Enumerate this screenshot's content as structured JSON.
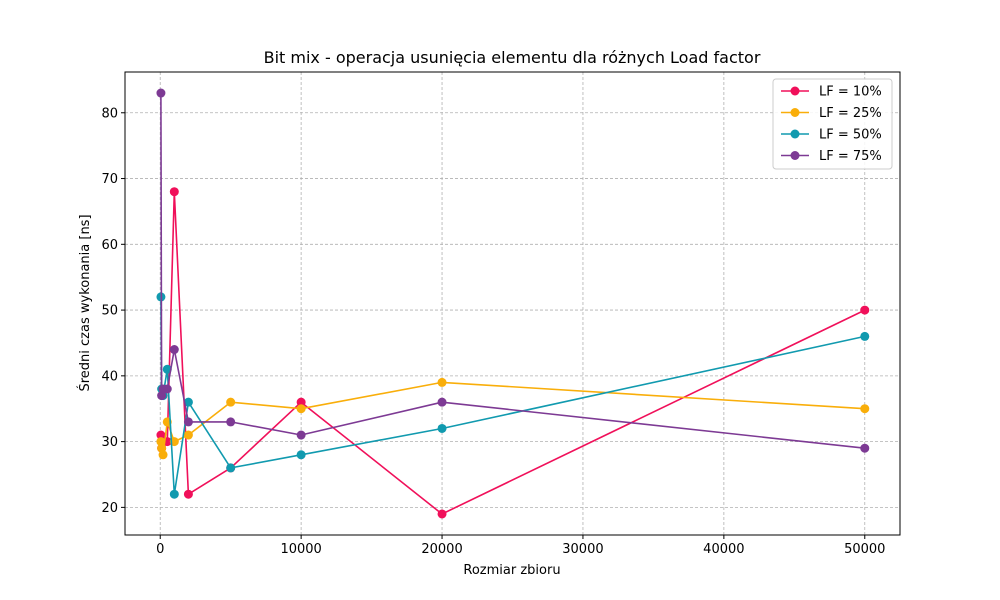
{
  "chart_data": {
    "type": "line",
    "title": "Bit mix - operacja usunięcia elementu dla różnych Load factor",
    "xlabel": "Rozmiar zbioru",
    "ylabel": "Średni czas wykonania [ns]",
    "xlim": [
      -2500,
      52500
    ],
    "ylim": [
      15.8,
      86.2
    ],
    "xticks": [
      0,
      10000,
      20000,
      30000,
      40000,
      50000
    ],
    "yticks": [
      20,
      30,
      40,
      50,
      60,
      70,
      80
    ],
    "grid": true,
    "legend_position": "top-right",
    "x": [
      50,
      100,
      200,
      500,
      1000,
      2000,
      5000,
      10000,
      20000,
      50000
    ],
    "series": [
      {
        "name": "LF = 10%",
        "color": "#f0105a",
        "values": [
          31,
          29,
          30,
          30,
          68,
          22,
          26,
          36,
          19,
          50
        ]
      },
      {
        "name": "LF = 25%",
        "color": "#f9ae0a",
        "values": [
          30,
          29,
          28,
          33,
          30,
          31,
          36,
          35,
          39,
          35
        ]
      },
      {
        "name": "LF = 50%",
        "color": "#119aaf",
        "values": [
          52,
          38,
          37,
          41,
          22,
          36,
          26,
          28,
          32,
          46
        ]
      },
      {
        "name": "LF = 75%",
        "color": "#7d3a94",
        "values": [
          83,
          37,
          38,
          38,
          44,
          33,
          33,
          31,
          36,
          29
        ]
      }
    ]
  }
}
